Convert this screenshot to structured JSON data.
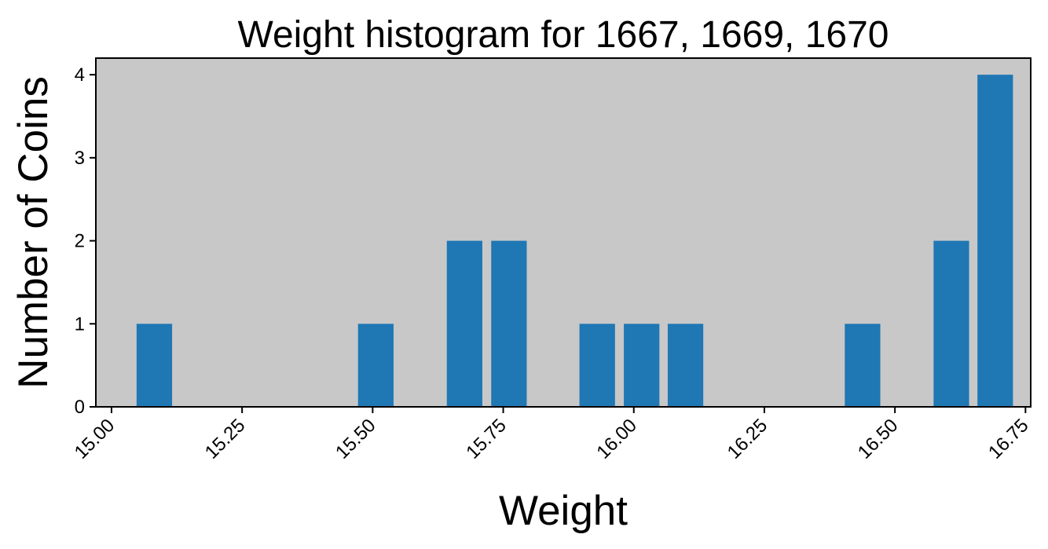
{
  "chart_data": {
    "type": "bar",
    "title": "Weight histogram for 1667, 1669, 1670",
    "xlabel": "Weight",
    "ylabel": "Number of Coins",
    "x": [
      15.082,
      15.506,
      15.676,
      15.761,
      15.93,
      16.015,
      16.099,
      16.438,
      16.608,
      16.692
    ],
    "values": [
      1,
      1,
      2,
      2,
      1,
      1,
      1,
      1,
      2,
      4
    ],
    "bar_width": 0.068,
    "xlim": [
      14.97,
      16.76
    ],
    "ylim": [
      0,
      4.2
    ],
    "xticks": [
      15.0,
      15.25,
      15.5,
      15.75,
      16.0,
      16.25,
      16.5,
      16.75
    ],
    "xtick_labels": [
      "15.00",
      "15.25",
      "15.50",
      "15.75",
      "16.00",
      "16.25",
      "16.50",
      "16.75"
    ],
    "yticks": [
      0,
      1,
      2,
      3,
      4
    ],
    "ytick_labels": [
      "0",
      "1",
      "2",
      "3",
      "4"
    ],
    "xtick_rotation": 45,
    "grid": false,
    "bar_color": "#1f77b4",
    "plot_background": "#c8c8c8"
  }
}
